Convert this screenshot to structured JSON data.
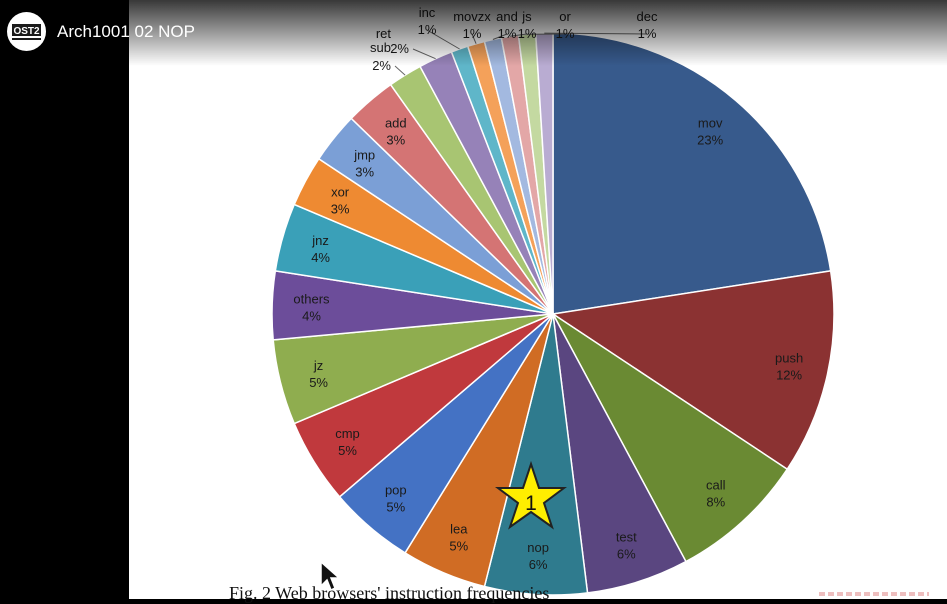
{
  "player": {
    "title": "Arch1001 02 NOP",
    "channel_logo_text": "OST2",
    "channel_logo_icon": "ost2-logo-icon"
  },
  "slide": {
    "caption": "Fig. 2 Web browsers' instruction frequencies",
    "annotation_number": "1",
    "annotation_icon": "star-icon"
  },
  "chart_data": {
    "type": "pie",
    "title": "",
    "slices": [
      {
        "label": "mov",
        "pct_label": "23%",
        "value": 23,
        "color": "#375a8c"
      },
      {
        "label": "push",
        "pct_label": "12%",
        "value": 12,
        "color": "#8b3232"
      },
      {
        "label": "call",
        "pct_label": "8%",
        "value": 8,
        "color": "#6a8a33"
      },
      {
        "label": "test",
        "pct_label": "6%",
        "value": 6,
        "color": "#5a4680"
      },
      {
        "label": "nop",
        "pct_label": "6%",
        "value": 6,
        "color": "#2f7b8e"
      },
      {
        "label": "lea",
        "pct_label": "5%",
        "value": 5,
        "color": "#d06c24"
      },
      {
        "label": "pop",
        "pct_label": "5%",
        "value": 5,
        "color": "#4472c4"
      },
      {
        "label": "cmp",
        "pct_label": "5%",
        "value": 5,
        "color": "#c0393d"
      },
      {
        "label": "jz",
        "pct_label": "5%",
        "value": 5,
        "color": "#8fad4f"
      },
      {
        "label": "others",
        "pct_label": "4%",
        "value": 4,
        "color": "#6c4d9a"
      },
      {
        "label": "jnz",
        "pct_label": "4%",
        "value": 4,
        "color": "#3aa0b8"
      },
      {
        "label": "xor",
        "pct_label": "3%",
        "value": 3,
        "color": "#ee8a32"
      },
      {
        "label": "jmp",
        "pct_label": "3%",
        "value": 3,
        "color": "#7b9fd6"
      },
      {
        "label": "add",
        "pct_label": "3%",
        "value": 3,
        "color": "#d47474"
      },
      {
        "label": "sub",
        "pct_label": "2%",
        "value": 2,
        "color": "#a8c572"
      },
      {
        "label": "ret",
        "pct_label": "2%",
        "value": 2,
        "color": "#9682b8"
      },
      {
        "label": "inc",
        "pct_label": "1%",
        "value": 1,
        "color": "#5fb6c9"
      },
      {
        "label": "movzx",
        "pct_label": "1%",
        "value": 1,
        "color": "#f4a15a"
      },
      {
        "label": "and",
        "pct_label": "1%",
        "value": 1,
        "color": "#a3b9e0"
      },
      {
        "label": "js",
        "pct_label": "1%",
        "value": 1,
        "color": "#e3a7a7"
      },
      {
        "label": "or",
        "pct_label": "1%",
        "value": 1,
        "color": "#c4d9a1"
      },
      {
        "label": "dec",
        "pct_label": "1%",
        "value": 1,
        "color": "#b9acd2"
      }
    ]
  }
}
